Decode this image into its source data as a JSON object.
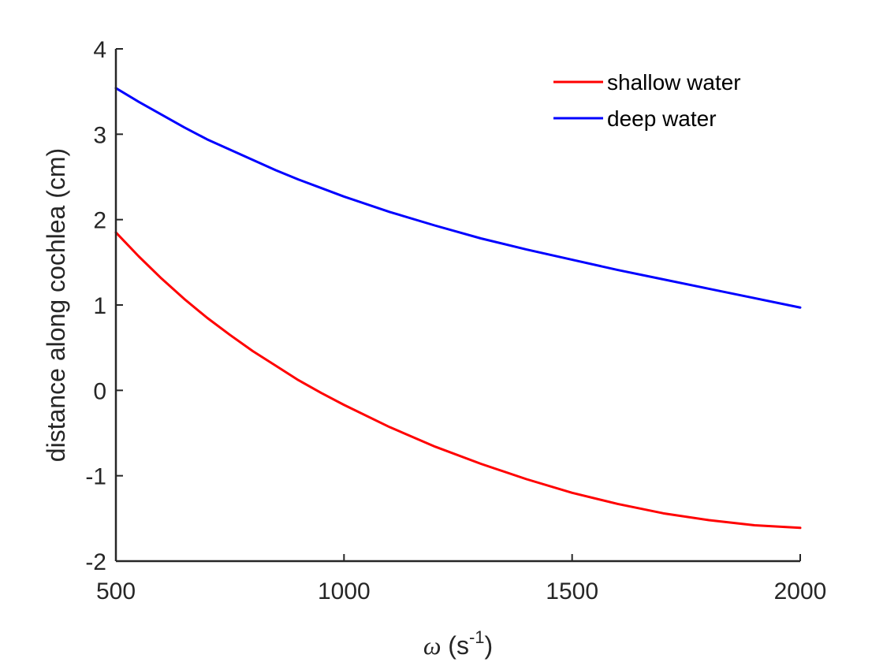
{
  "chart_data": {
    "type": "line",
    "title": "",
    "xlabel": {
      "symbol": "ω",
      "prefix": " (s",
      "superscript": "-1",
      "suffix": ")"
    },
    "ylabel": "distance along cochlea (cm)",
    "xlim": [
      500,
      2000
    ],
    "ylim": [
      -2,
      4
    ],
    "xticks": [
      500,
      1000,
      1500,
      2000
    ],
    "xtick_labels": [
      "500",
      "1000",
      "1500",
      "2000"
    ],
    "yticks": [
      -2,
      -1,
      0,
      1,
      2,
      3,
      4
    ],
    "ytick_labels": [
      "-2",
      "-1",
      "0",
      "1",
      "2",
      "3",
      "4"
    ],
    "grid": false,
    "legend_position": "top-right",
    "series": [
      {
        "name": "shallow water",
        "color": "#ff0000",
        "x": [
          500,
          550,
          600,
          650,
          700,
          750,
          800,
          850,
          900,
          950,
          1000,
          1100,
          1200,
          1300,
          1400,
          1500,
          1600,
          1700,
          1800,
          1900,
          2000
        ],
        "y": [
          1.85,
          1.57,
          1.31,
          1.07,
          0.85,
          0.65,
          0.46,
          0.29,
          0.12,
          -0.03,
          -0.17,
          -0.43,
          -0.66,
          -0.86,
          -1.04,
          -1.2,
          -1.33,
          -1.44,
          -1.52,
          -1.58,
          -1.61
        ]
      },
      {
        "name": "deep water",
        "color": "#0000ff",
        "x": [
          500,
          550,
          600,
          650,
          700,
          750,
          800,
          850,
          900,
          950,
          1000,
          1100,
          1200,
          1300,
          1400,
          1500,
          1600,
          1700,
          1800,
          1900,
          2000
        ],
        "y": [
          3.54,
          3.38,
          3.23,
          3.08,
          2.94,
          2.82,
          2.7,
          2.58,
          2.47,
          2.37,
          2.27,
          2.09,
          1.93,
          1.78,
          1.65,
          1.53,
          1.41,
          1.3,
          1.19,
          1.08,
          0.97
        ]
      }
    ]
  }
}
